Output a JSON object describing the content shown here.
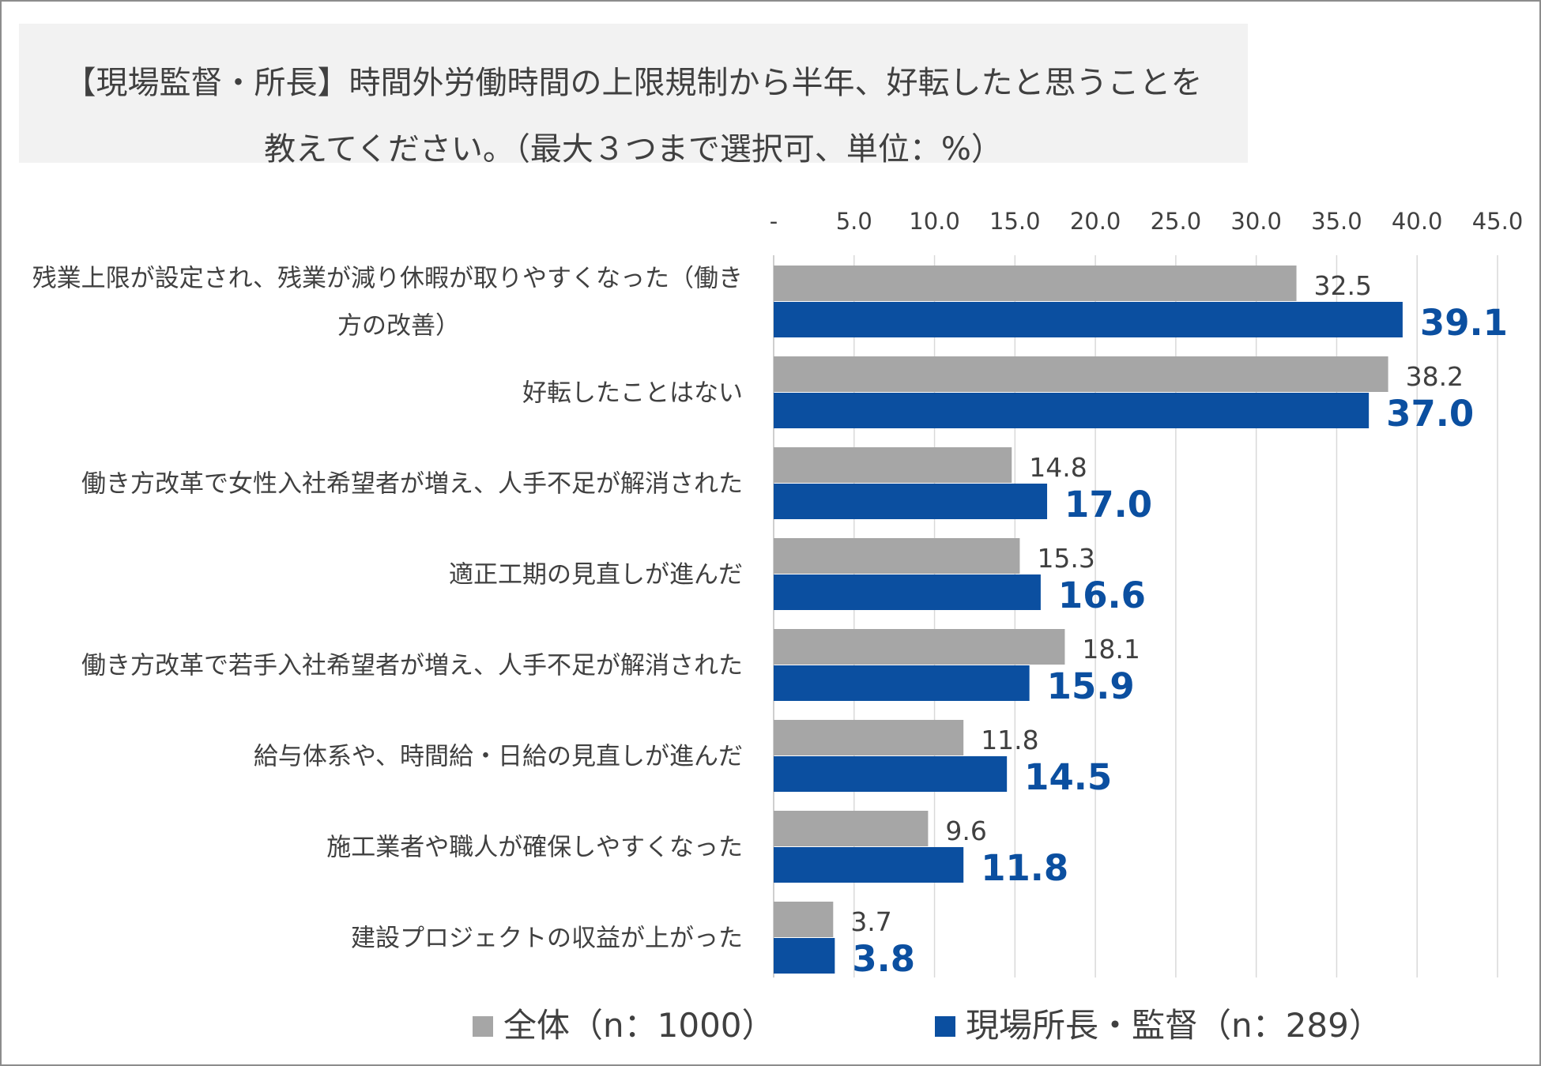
{
  "title": {
    "line1": "【現場監督・所長】時間外労働時間の上限規制から半年、好転したと思うことを",
    "line2": "教えてください。（最大３つまで選択可、単位：%）"
  },
  "colors": {
    "all": "#a6a6a6",
    "site": "#0b4fa0",
    "grid": "#d9d9d9",
    "title_bg": "#f2f2f2"
  },
  "chart_data": {
    "type": "bar",
    "orientation": "horizontal",
    "x_axis_position": "top",
    "xlim": [
      0,
      45
    ],
    "x_ticks": [
      0,
      5,
      10,
      15,
      20,
      25,
      30,
      35,
      40,
      45
    ],
    "x_tick_labels": [
      "-",
      "5.0",
      "10.0",
      "15.0",
      "20.0",
      "25.0",
      "30.0",
      "35.0",
      "40.0",
      "45.0"
    ],
    "grid": true,
    "legend_position": "bottom",
    "categories": [
      [
        "残業上限が設定され、残業が減り休暇が取りやすくなった（働き",
        "方の改善）"
      ],
      [
        "好転したことはない"
      ],
      [
        "働き方改革で女性入社希望者が増え、人手不足が解消された"
      ],
      [
        "適正工期の見直しが進んだ"
      ],
      [
        "働き方改革で若手入社希望者が増え、人手不足が解消された"
      ],
      [
        "給与体系や、時間給・日給の見直しが進んだ"
      ],
      [
        "施工業者や職人が確保しやすくなった"
      ],
      [
        "建設プロジェクトの収益が上がった"
      ]
    ],
    "series": [
      {
        "name": "全体（n：1000）",
        "color": "#a6a6a6",
        "values": [
          32.5,
          38.2,
          14.8,
          15.3,
          18.1,
          11.8,
          9.6,
          3.7
        ],
        "labels": [
          "32.5",
          "38.2",
          "14.8",
          "15.3",
          "18.1",
          "11.8",
          "9.6",
          "3.7"
        ]
      },
      {
        "name": "現場所長・監督（n：289）",
        "color": "#0b4fa0",
        "values": [
          39.1,
          37.0,
          17.0,
          16.6,
          15.9,
          14.5,
          11.8,
          3.8
        ],
        "labels": [
          "39.1",
          "37.0",
          "17.0",
          "16.6",
          "15.9",
          "14.5",
          "11.8",
          "3.8"
        ]
      }
    ]
  }
}
